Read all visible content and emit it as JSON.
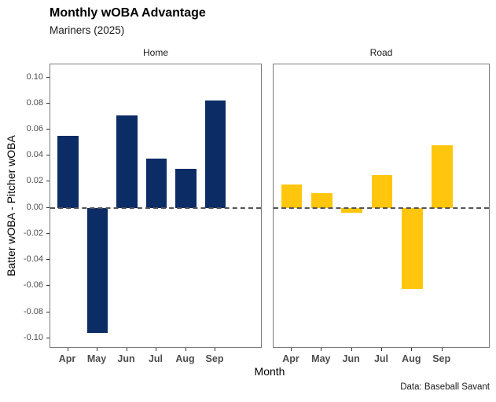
{
  "title": "Monthly wOBA Advantage",
  "subtitle": "Mariners (2025)",
  "caption": "Data: Baseball Savant",
  "chart_data": {
    "type": "bar",
    "facet_variable": "Home/Road split",
    "categories": [
      "Apr",
      "May",
      "Jun",
      "Jul",
      "Aug",
      "Sep"
    ],
    "facets": [
      {
        "label": "Home",
        "color": "#0C2C66",
        "values": [
          0.055,
          -0.096,
          0.071,
          0.038,
          0.03,
          0.082
        ]
      },
      {
        "label": "Road",
        "color": "#FFC60D",
        "values": [
          0.018,
          0.011,
          -0.004,
          0.025,
          -0.062,
          0.048
        ]
      }
    ],
    "title": "Monthly wOBA Advantage",
    "subtitle": "Mariners (2025)",
    "caption": "Data: Baseball Savant",
    "xlabel": "Month",
    "ylabel": "Batter wOBA - Pitcher wOBA",
    "ylim": [
      -0.108,
      0.11
    ],
    "yticks": [
      0.1,
      0.08,
      0.06,
      0.04,
      0.02,
      0.0,
      -0.02,
      -0.04,
      -0.06,
      -0.08,
      -0.1
    ],
    "ytick_labels": [
      "0.10",
      "0.08",
      "0.06",
      "0.04",
      "0.02",
      "0.00",
      "-0.02",
      "-0.04",
      "-0.06",
      "-0.08",
      "-0.10"
    ],
    "zero_line": {
      "value": 0,
      "style": "dashed",
      "color": "#555555"
    },
    "grid": false,
    "legend": "none",
    "panel_border_color": "#7A7A7A",
    "axis_text_color": "#4D4D4D"
  }
}
